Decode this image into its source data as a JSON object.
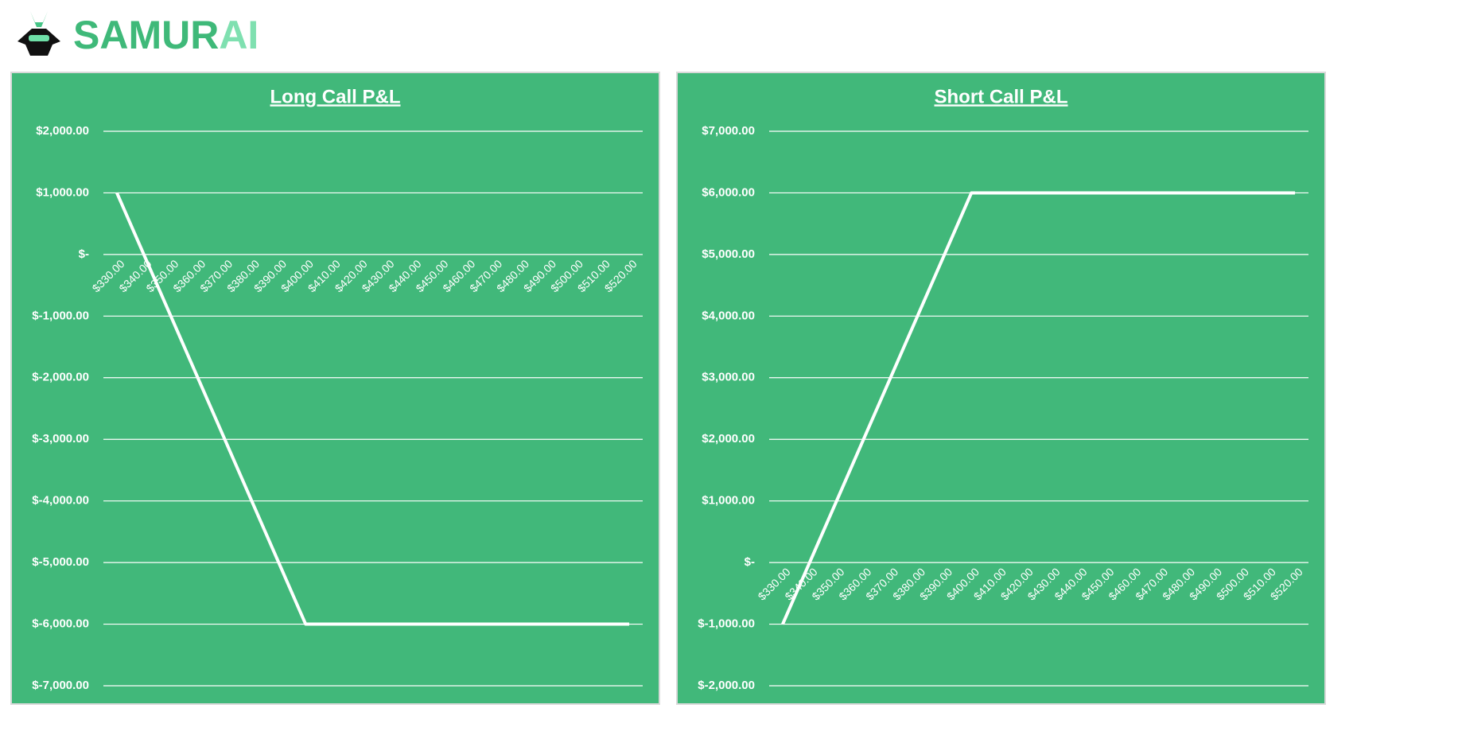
{
  "header": {
    "logo": [
      "SAMUR",
      "AI"
    ]
  },
  "chart_data": [
    {
      "type": "line",
      "title": "Long Call P&L",
      "categories": [
        "$330.00",
        "$340.00",
        "$350.00",
        "$360.00",
        "$370.00",
        "$380.00",
        "$390.00",
        "$400.00",
        "$410.00",
        "$420.00",
        "$430.00",
        "$440.00",
        "$450.00",
        "$460.00",
        "$470.00",
        "$480.00",
        "$490.00",
        "$500.00",
        "$510.00",
        "$520.00"
      ],
      "values": [
        1000,
        0,
        -1000,
        -2000,
        -3000,
        -4000,
        -5000,
        -6000,
        -6000,
        -6000,
        -6000,
        -6000,
        -6000,
        -6000,
        -6000,
        -6000,
        -6000,
        -6000,
        -6000,
        -6000
      ],
      "color": "#ffffff",
      "ylim": [
        -7000,
        2000
      ],
      "yticks": [
        {
          "value": -7000,
          "label": "$-7,000.00"
        },
        {
          "value": -6000,
          "label": "$-6,000.00"
        },
        {
          "value": -5000,
          "label": "$-5,000.00"
        },
        {
          "value": -4000,
          "label": "$-4,000.00"
        },
        {
          "value": -3000,
          "label": "$-3,000.00"
        },
        {
          "value": -2000,
          "label": "$-2,000.00"
        },
        {
          "value": -1000,
          "label": "$-1,000.00"
        },
        {
          "value": 0,
          "label": "$-"
        },
        {
          "value": 1000,
          "label": "$1,000.00"
        },
        {
          "value": 2000,
          "label": "$2,000.00"
        }
      ],
      "grid": true
    },
    {
      "type": "line",
      "title": "Short Call P&L",
      "categories": [
        "$330.00",
        "$340.00",
        "$350.00",
        "$360.00",
        "$370.00",
        "$380.00",
        "$390.00",
        "$400.00",
        "$410.00",
        "$420.00",
        "$430.00",
        "$440.00",
        "$450.00",
        "$460.00",
        "$470.00",
        "$480.00",
        "$490.00",
        "$500.00",
        "$510.00",
        "$520.00"
      ],
      "values": [
        -1000,
        0,
        1000,
        2000,
        3000,
        4000,
        5000,
        6000,
        6000,
        6000,
        6000,
        6000,
        6000,
        6000,
        6000,
        6000,
        6000,
        6000,
        6000,
        6000
      ],
      "color": "#ffffff",
      "ylim": [
        -2000,
        7000
      ],
      "yticks": [
        {
          "value": -2000,
          "label": "$-2,000.00"
        },
        {
          "value": -1000,
          "label": "$-1,000.00"
        },
        {
          "value": 0,
          "label": "$-"
        },
        {
          "value": 1000,
          "label": "$1,000.00"
        },
        {
          "value": 2000,
          "label": "$2,000.00"
        },
        {
          "value": 3000,
          "label": "$3,000.00"
        },
        {
          "value": 4000,
          "label": "$4,000.00"
        },
        {
          "value": 5000,
          "label": "$5,000.00"
        },
        {
          "value": 6000,
          "label": "$6,000.00"
        },
        {
          "value": 7000,
          "label": "$7,000.00"
        }
      ],
      "grid": true
    }
  ]
}
